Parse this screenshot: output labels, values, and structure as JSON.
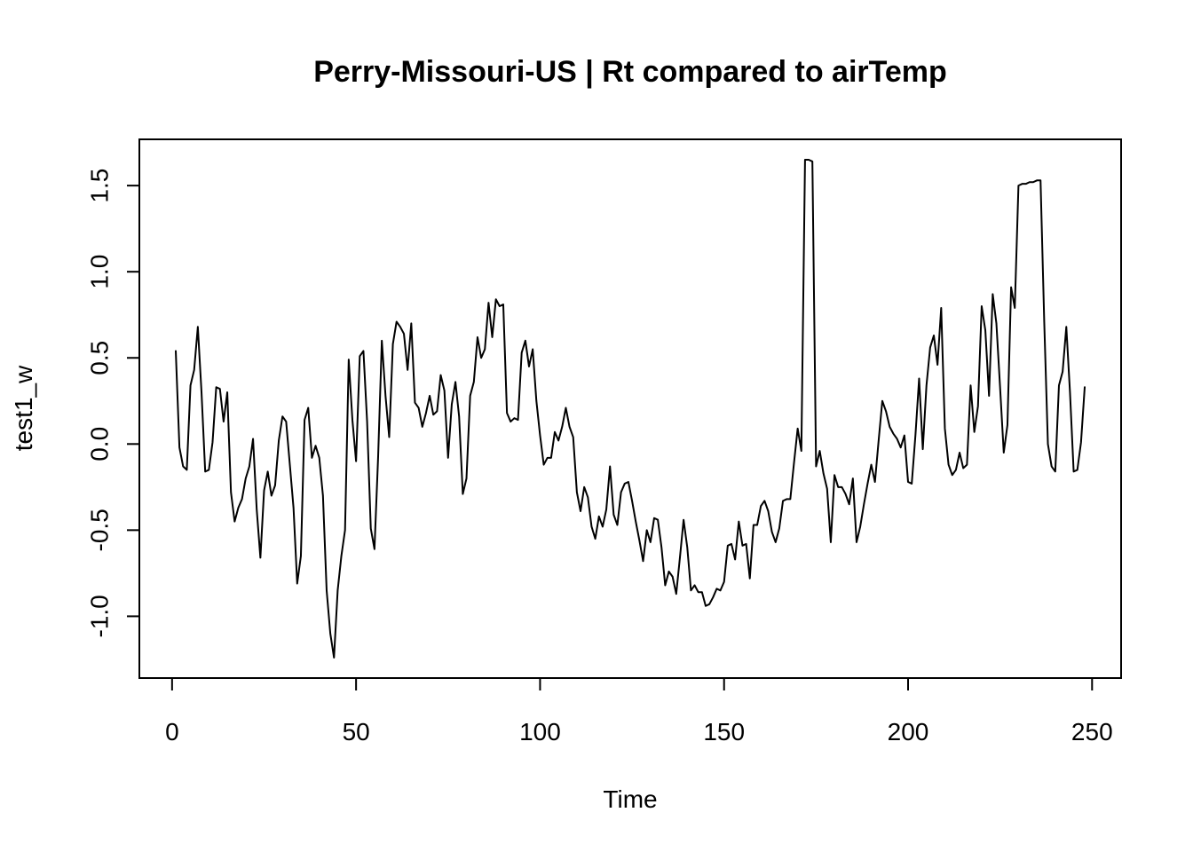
{
  "chart_data": {
    "type": "line",
    "title": "Perry-Missouri-US | Rt compared to airTemp",
    "xlabel": "Time",
    "ylabel": "test1_w",
    "xlim": [
      1,
      248
    ],
    "ylim": [
      -1.24,
      1.65
    ],
    "xticks": [
      0,
      50,
      100,
      150,
      200,
      250
    ],
    "xtick_labels": [
      "0",
      "50",
      "100",
      "150",
      "200",
      "250"
    ],
    "yticks": [
      -1.0,
      -0.5,
      0.0,
      0.5,
      1.0,
      1.5
    ],
    "ytick_labels": [
      "-1.0",
      "-0.5",
      "0.0",
      "0.5",
      "1.0",
      "1.5"
    ],
    "grid": false,
    "colors": {
      "line": "#000000",
      "frame": "#000000",
      "background": "#ffffff"
    },
    "series": [
      {
        "x": [
          1,
          2,
          3,
          4,
          5,
          6,
          7,
          8,
          9,
          10,
          11,
          12,
          13,
          14,
          15,
          16,
          17,
          18,
          19,
          20,
          21,
          22,
          23,
          24,
          25,
          26,
          27,
          28,
          29,
          30,
          31,
          32,
          33,
          34,
          35,
          36,
          37,
          38,
          39,
          40,
          41,
          42,
          43,
          44,
          45,
          46,
          47,
          48,
          49,
          50,
          51,
          52,
          53,
          54,
          55,
          56,
          57,
          58,
          59,
          60,
          61,
          62,
          63,
          64,
          65,
          66,
          67,
          68,
          69,
          70,
          71,
          72,
          73,
          74,
          75,
          76,
          77,
          78,
          79,
          80,
          81,
          82,
          83,
          84,
          85,
          86,
          87,
          88,
          89,
          90,
          91,
          92,
          93,
          94,
          95,
          96,
          97,
          98,
          99,
          100,
          101,
          102,
          103,
          104,
          105,
          106,
          107,
          108,
          109,
          110,
          111,
          112,
          113,
          114,
          115,
          116,
          117,
          118,
          119,
          120,
          121,
          122,
          123,
          124,
          125,
          126,
          127,
          128,
          129,
          130,
          131,
          132,
          133,
          134,
          135,
          136,
          137,
          138,
          139,
          140,
          141,
          142,
          143,
          144,
          145,
          146,
          147,
          148,
          149,
          150,
          151,
          152,
          153,
          154,
          155,
          156,
          157,
          158,
          159,
          160,
          161,
          162,
          163,
          164,
          165,
          166,
          167,
          168,
          169,
          170,
          171,
          172,
          173,
          174,
          175,
          176,
          177,
          178,
          179,
          180,
          181,
          182,
          183,
          184,
          185,
          186,
          187,
          188,
          189,
          190,
          191,
          192,
          193,
          194,
          195,
          196,
          197,
          198,
          199,
          200,
          201,
          202,
          203,
          204,
          205,
          206,
          207,
          208,
          209,
          210,
          211,
          212,
          213,
          214,
          215,
          216,
          217,
          218,
          219,
          220,
          221,
          222,
          223,
          224,
          225,
          226,
          227,
          228,
          229,
          230,
          231,
          232,
          233,
          234,
          235,
          236,
          237,
          238,
          239,
          240,
          241,
          242,
          243,
          244,
          245,
          246,
          247,
          248
        ],
        "y": [
          0.54,
          -0.02,
          -0.13,
          -0.15,
          0.34,
          0.43,
          0.68,
          0.3,
          -0.16,
          -0.15,
          0.01,
          0.33,
          0.32,
          0.13,
          0.3,
          -0.28,
          -0.45,
          -0.37,
          -0.32,
          -0.2,
          -0.13,
          0.03,
          -0.38,
          -0.66,
          -0.27,
          -0.16,
          -0.3,
          -0.24,
          0.02,
          0.16,
          0.13,
          -0.12,
          -0.37,
          -0.81,
          -0.65,
          0.14,
          0.21,
          -0.08,
          -0.01,
          -0.08,
          -0.3,
          -0.85,
          -1.1,
          -1.24,
          -0.85,
          -0.65,
          -0.5,
          0.49,
          0.14,
          -0.1,
          0.51,
          0.54,
          0.13,
          -0.49,
          -0.61,
          -0.07,
          0.6,
          0.28,
          0.04,
          0.58,
          0.71,
          0.68,
          0.64,
          0.43,
          0.7,
          0.24,
          0.21,
          0.1,
          0.18,
          0.28,
          0.17,
          0.19,
          0.4,
          0.31,
          -0.08,
          0.23,
          0.36,
          0.16,
          -0.29,
          -0.2,
          0.28,
          0.36,
          0.62,
          0.5,
          0.55,
          0.82,
          0.62,
          0.84,
          0.8,
          0.81,
          0.18,
          0.13,
          0.15,
          0.14,
          0.53,
          0.6,
          0.45,
          0.55,
          0.25,
          0.05,
          -0.12,
          -0.08,
          -0.08,
          0.07,
          0.02,
          0.1,
          0.21,
          0.1,
          0.04,
          -0.28,
          -0.39,
          -0.25,
          -0.31,
          -0.48,
          -0.55,
          -0.42,
          -0.48,
          -0.38,
          -0.13,
          -0.41,
          -0.47,
          -0.28,
          -0.23,
          -0.22,
          -0.33,
          -0.45,
          -0.56,
          -0.68,
          -0.5,
          -0.57,
          -0.43,
          -0.44,
          -0.6,
          -0.82,
          -0.74,
          -0.77,
          -0.87,
          -0.66,
          -0.44,
          -0.6,
          -0.85,
          -0.82,
          -0.86,
          -0.86,
          -0.94,
          -0.93,
          -0.89,
          -0.84,
          -0.85,
          -0.8,
          -0.59,
          -0.58,
          -0.67,
          -0.45,
          -0.59,
          -0.58,
          -0.78,
          -0.47,
          -0.47,
          -0.36,
          -0.33,
          -0.39,
          -0.51,
          -0.57,
          -0.49,
          -0.33,
          -0.32,
          -0.32,
          -0.11,
          0.09,
          -0.04,
          1.65,
          1.65,
          1.64,
          -0.13,
          -0.04,
          -0.17,
          -0.26,
          -0.57,
          -0.18,
          -0.25,
          -0.25,
          -0.29,
          -0.35,
          -0.2,
          -0.57,
          -0.48,
          -0.35,
          -0.23,
          -0.12,
          -0.22,
          0.02,
          0.25,
          0.19,
          0.1,
          0.06,
          0.03,
          -0.02,
          0.05,
          -0.22,
          -0.23,
          0.05,
          0.38,
          -0.03,
          0.34,
          0.56,
          0.63,
          0.46,
          0.79,
          0.09,
          -0.12,
          -0.18,
          -0.15,
          -0.05,
          -0.14,
          -0.12,
          0.34,
          0.07,
          0.22,
          0.8,
          0.66,
          0.28,
          0.87,
          0.7,
          0.33,
          -0.05,
          0.11,
          0.91,
          0.79,
          1.5,
          1.51,
          1.51,
          1.52,
          1.52,
          1.53,
          1.53,
          0.71,
          0.0,
          -0.13,
          -0.16,
          0.34,
          0.42,
          0.68,
          0.3,
          -0.16,
          -0.15,
          0.01,
          0.33
        ]
      }
    ]
  }
}
